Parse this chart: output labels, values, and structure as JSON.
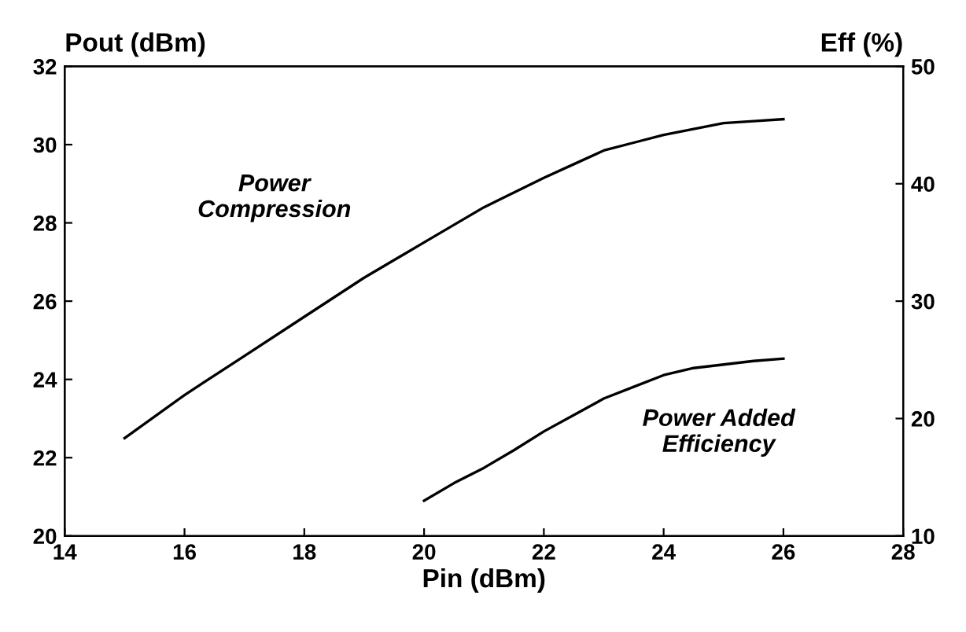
{
  "chart_data": {
    "type": "line",
    "xlabel": "Pin (dBm)",
    "ylabel": "Pout (dBm)",
    "y2label": "Eff (%)",
    "xlim": [
      14,
      28
    ],
    "xticks": [
      14,
      16,
      18,
      20,
      22,
      24,
      26,
      28
    ],
    "ylim": [
      20,
      32
    ],
    "yticks": [
      20,
      22,
      24,
      26,
      28,
      30,
      32
    ],
    "y2lim": [
      10,
      50
    ],
    "y2ticks": [
      10,
      20,
      30,
      40,
      50
    ],
    "grid": false,
    "legend": false,
    "marker": "none",
    "line_style": "solid",
    "series": [
      {
        "name": "Power\nCompression",
        "color": "#000000",
        "x": [
          15,
          16,
          17,
          18,
          19,
          20,
          21,
          22,
          22.5,
          23,
          23.5,
          24,
          24.5,
          25,
          25.5,
          26
        ],
        "values": [
          22.5,
          23.6,
          24.6,
          25.6,
          26.6,
          27.5,
          28.4,
          29.15,
          29.5,
          29.85,
          30.05,
          30.25,
          30.4,
          30.55,
          30.6,
          30.65
        ]
      },
      {
        "name": "Power Added\nEfficiency",
        "color": "#000000",
        "axis": "y2",
        "x": [
          20,
          20.5,
          21,
          21.5,
          22,
          22.5,
          23,
          23.5,
          24,
          24.5,
          25,
          25.5,
          26
        ],
        "values": [
          13.0,
          14.5,
          15.8,
          17.3,
          18.9,
          20.3,
          21.7,
          22.7,
          23.7,
          24.3,
          24.6,
          24.9,
          25.1
        ]
      }
    ]
  }
}
